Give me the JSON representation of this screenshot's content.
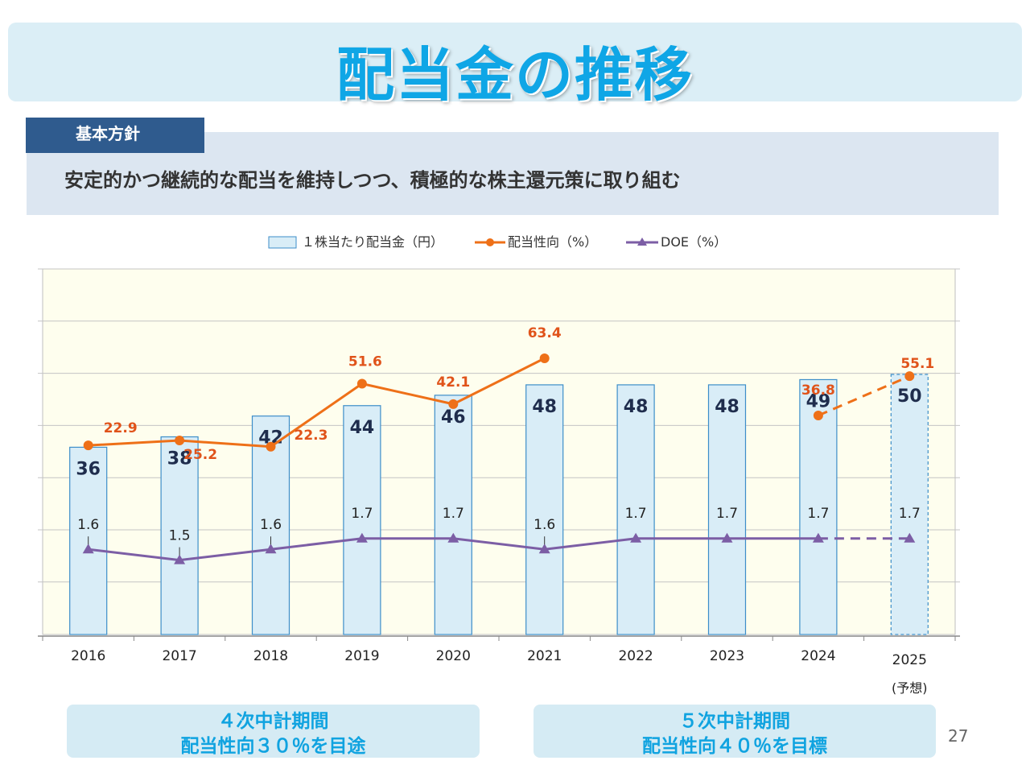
{
  "title": "配当金の推移",
  "policy": {
    "tag": "基本方針",
    "text": "安定的かつ継続的な配当を維持しつつ、積極的な株主還元策に取り組む"
  },
  "periods": [
    {
      "line1": "４次中計期間",
      "line2": "配当性向３０％を目途"
    },
    {
      "line1": "５次中計期間",
      "line2": "配当性向４０％を目標"
    }
  ],
  "page_number": "27",
  "colors": {
    "bar_fill": "#d9edf7",
    "bar_stroke": "#3d8ec9",
    "payout": "#ee7018",
    "payout_label": "#e0531a",
    "doe": "#7c5ea5",
    "plot_bg": "#fefeee"
  },
  "chart_data": {
    "type": "bar",
    "categories": [
      "2016",
      "2017",
      "2018",
      "2019",
      "2020",
      "2021",
      "2022",
      "2023",
      "2024",
      "2025"
    ],
    "category_note": {
      "index": 9,
      "text": "(予想)"
    },
    "series": [
      {
        "name": "１株当たり配当金（円）",
        "kind": "bar",
        "values": [
          36,
          38,
          42,
          44,
          46,
          48,
          48,
          48,
          49,
          50
        ]
      },
      {
        "name": "配当性向（%）",
        "kind": "line",
        "values": [
          22.9,
          25.2,
          22.3,
          51.6,
          42.1,
          63.4,
          null,
          null,
          36.8,
          55.1
        ],
        "labels": [
          "22.9",
          "25.2",
          "22.3",
          "51.6",
          "42.1",
          "63.4",
          null,
          null,
          "36.8",
          "55.1"
        ]
      },
      {
        "name": "DOE（%）",
        "kind": "line",
        "values": [
          1.6,
          1.5,
          1.6,
          1.7,
          1.7,
          1.6,
          1.7,
          1.7,
          1.7,
          1.7
        ],
        "labels": [
          "1.6",
          "1.5",
          "1.6",
          "1.7",
          "1.7",
          "1.6",
          "1.7",
          "1.7",
          "1.7",
          "1.7"
        ]
      }
    ],
    "bar_labels": [
      "36",
      "38",
      "42",
      "44",
      "46",
      "48",
      "48",
      "48",
      "49",
      "50"
    ],
    "forecast_index": 9,
    "legend_position": "top-center",
    "grid": true
  }
}
